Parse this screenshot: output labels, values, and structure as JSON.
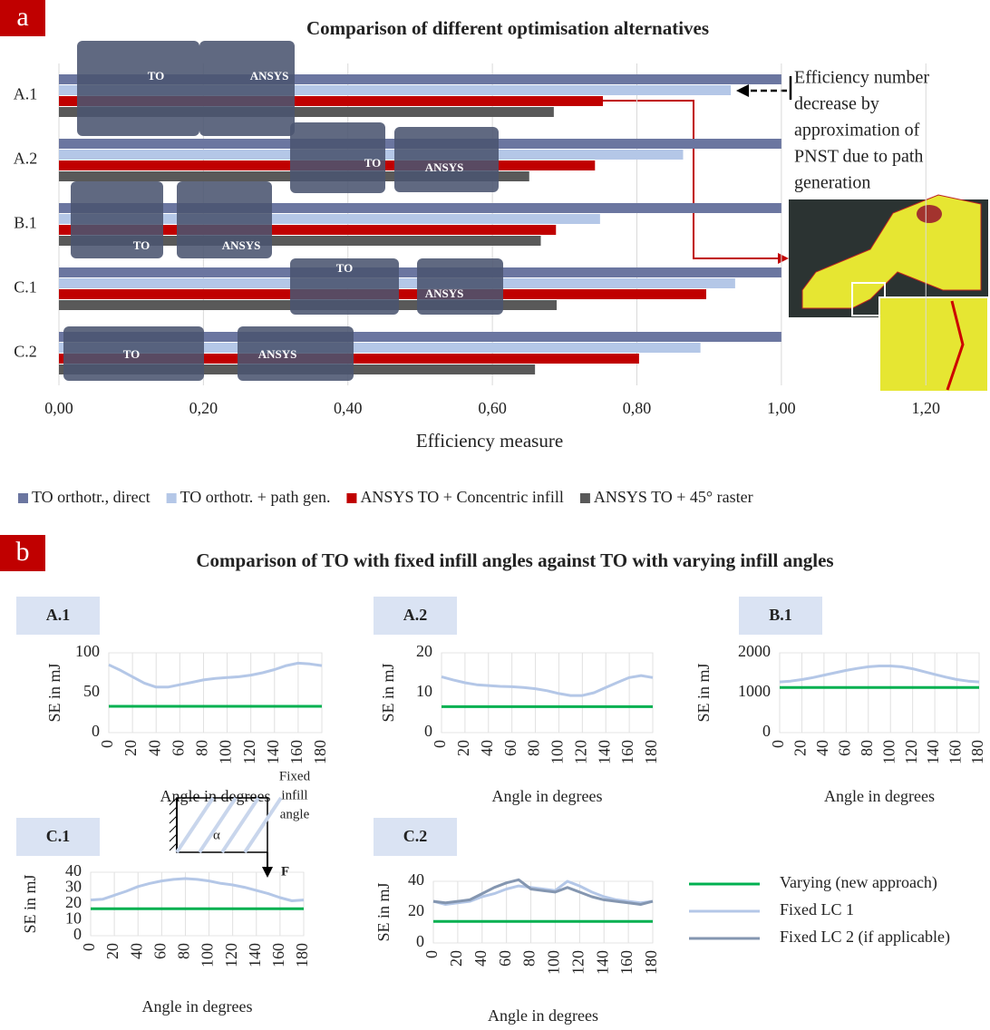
{
  "chart_data": [
    {
      "type": "bar",
      "orientation": "horizontal",
      "panel_label": "a",
      "title": "Comparison of different optimisation alternatives",
      "xlabel": "Efficiency measure",
      "categories": [
        "A.1",
        "A.2",
        "B.1",
        "C.1",
        "C.2"
      ],
      "series": [
        {
          "name": "TO orthotr., direct",
          "color": "#6b76a0",
          "values": [
            1.0,
            1.0,
            1.0,
            1.0,
            1.0
          ]
        },
        {
          "name": "TO orthotr. + path gen.",
          "color": "#b4c7e7",
          "values": [
            0.93,
            0.864,
            0.749,
            0.936,
            0.888
          ]
        },
        {
          "name": "ANSYS TO + Concentric infill",
          "color": "#c00000",
          "values": [
            0.753,
            0.742,
            0.688,
            0.896,
            0.803
          ]
        },
        {
          "name": "ANSYS TO + 45° raster",
          "color": "#595959",
          "values": [
            0.685,
            0.651,
            0.667,
            0.689,
            0.659
          ]
        }
      ],
      "xlim": [
        0,
        1.28
      ],
      "xticks": [
        {
          "value": 0,
          "label": "0,00"
        },
        {
          "value": 0.2,
          "label": "0,20"
        },
        {
          "value": 0.4,
          "label": "0,40"
        },
        {
          "value": 0.6,
          "label": "0,60"
        },
        {
          "value": 0.8,
          "label": "0,80"
        },
        {
          "value": 1.0,
          "label": "1,00"
        },
        {
          "value": 1.2,
          "label": "1,20"
        }
      ],
      "grid": true,
      "legend_position": "bottom",
      "annotation": [
        "Efficiency number",
        "decrease by",
        "approximation of",
        "PNST due to path",
        "generation"
      ],
      "image_labels": [
        [
          "TO",
          "ANSYS"
        ],
        [
          "TO",
          "ANSYS"
        ],
        [
          "TO",
          "ANSYS"
        ],
        [
          "TO",
          "ANSYS"
        ],
        [
          "TO",
          "ANSYS"
        ]
      ]
    },
    {
      "type": "line",
      "title": "A.1",
      "xlabel": "Angle in degrees",
      "ylabel": "SE in mJ",
      "x": [
        0,
        10,
        20,
        30,
        40,
        50,
        60,
        70,
        80,
        90,
        100,
        110,
        120,
        130,
        140,
        150,
        160,
        170,
        180
      ],
      "xlim": [
        0,
        180
      ],
      "xticks": [
        0,
        20,
        40,
        60,
        80,
        100,
        120,
        140,
        160,
        180
      ],
      "ylim": [
        0,
        100
      ],
      "yticks": [
        0,
        50,
        100
      ],
      "grid": true,
      "series": [
        {
          "color": "#00b050",
          "values": [
            33,
            33,
            33,
            33,
            33,
            33,
            33,
            33,
            33,
            33,
            33,
            33,
            33,
            33,
            33,
            33,
            33,
            33,
            33
          ]
        },
        {
          "color": "#b4c7e7",
          "values": [
            85,
            78,
            70,
            62,
            57,
            57,
            60,
            63,
            66,
            68,
            69,
            70,
            72,
            75,
            79,
            84,
            87,
            86,
            84
          ]
        }
      ]
    },
    {
      "type": "line",
      "title": "A.2",
      "xlabel": "Angle in degrees",
      "ylabel": "SE in mJ",
      "x": [
        0,
        10,
        20,
        30,
        40,
        50,
        60,
        70,
        80,
        90,
        100,
        110,
        120,
        130,
        140,
        150,
        160,
        170,
        180
      ],
      "xlim": [
        0,
        180
      ],
      "xticks": [
        0,
        20,
        40,
        60,
        80,
        100,
        120,
        140,
        160,
        180
      ],
      "ylim": [
        0,
        20
      ],
      "yticks": [
        0,
        10,
        20
      ],
      "grid": true,
      "series": [
        {
          "color": "#00b050",
          "values": [
            6.5,
            6.5,
            6.5,
            6.5,
            6.5,
            6.5,
            6.5,
            6.5,
            6.5,
            6.5,
            6.5,
            6.5,
            6.5,
            6.5,
            6.5,
            6.5,
            6.5,
            6.5,
            6.5
          ]
        },
        {
          "color": "#b4c7e7",
          "values": [
            14,
            13.2,
            12.5,
            12,
            11.8,
            11.6,
            11.5,
            11.3,
            11,
            10.5,
            9.8,
            9.3,
            9.3,
            10,
            11.3,
            12.6,
            13.8,
            14.3,
            13.8
          ]
        }
      ]
    },
    {
      "type": "line",
      "title": "B.1",
      "xlabel": "Angle in degrees",
      "ylabel": "SE in mJ",
      "x": [
        0,
        10,
        20,
        30,
        40,
        50,
        60,
        70,
        80,
        90,
        100,
        110,
        120,
        130,
        140,
        150,
        160,
        170,
        180
      ],
      "xlim": [
        0,
        180
      ],
      "xticks": [
        0,
        20,
        40,
        60,
        80,
        100,
        120,
        140,
        160,
        180
      ],
      "ylim": [
        0,
        2000
      ],
      "yticks": [
        0,
        1000,
        2000
      ],
      "grid": true,
      "series": [
        {
          "color": "#00b050",
          "values": [
            1130,
            1130,
            1130,
            1130,
            1130,
            1130,
            1130,
            1130,
            1130,
            1130,
            1130,
            1130,
            1130,
            1130,
            1130,
            1130,
            1130,
            1130,
            1130
          ]
        },
        {
          "color": "#b4c7e7",
          "values": [
            1270,
            1290,
            1330,
            1380,
            1440,
            1500,
            1560,
            1610,
            1650,
            1670,
            1670,
            1650,
            1600,
            1530,
            1460,
            1390,
            1330,
            1290,
            1270
          ]
        }
      ]
    },
    {
      "type": "line",
      "title": "C.1",
      "xlabel": "Angle in degrees",
      "ylabel": "SE in mJ",
      "x": [
        0,
        10,
        20,
        30,
        40,
        50,
        60,
        70,
        80,
        90,
        100,
        110,
        120,
        130,
        140,
        150,
        160,
        170,
        180
      ],
      "xlim": [
        0,
        180
      ],
      "xticks": [
        0,
        20,
        40,
        60,
        80,
        100,
        120,
        140,
        160,
        180
      ],
      "ylim": [
        0,
        40
      ],
      "yticks": [
        0,
        10,
        20,
        30,
        40
      ],
      "grid": true,
      "series": [
        {
          "color": "#00b050",
          "values": [
            17,
            17,
            17,
            17,
            17,
            17,
            17,
            17,
            17,
            17,
            17,
            17,
            17,
            17,
            17,
            17,
            17,
            17,
            17
          ]
        },
        {
          "color": "#b4c7e7",
          "values": [
            22.5,
            23,
            25.5,
            28,
            31,
            33,
            34.5,
            35.5,
            36,
            35.5,
            34.5,
            33,
            32,
            30.5,
            28.5,
            26.5,
            24,
            22,
            22.5
          ]
        }
      ],
      "inset": {
        "text": [
          "Fixed",
          "infill",
          "angle"
        ],
        "angle_symbol": "α",
        "force_label": "F"
      }
    },
    {
      "type": "line",
      "title": "C.2",
      "xlabel": "Angle in degrees",
      "ylabel": "SE in mJ",
      "x": [
        0,
        10,
        20,
        30,
        40,
        50,
        60,
        70,
        80,
        90,
        100,
        110,
        120,
        130,
        140,
        150,
        160,
        170,
        180
      ],
      "xlim": [
        0,
        180
      ],
      "xticks": [
        0,
        20,
        40,
        60,
        80,
        100,
        120,
        140,
        160,
        180
      ],
      "ylim": [
        0,
        40
      ],
      "yticks": [
        0,
        20,
        40
      ],
      "grid": true,
      "legend_position": "right",
      "series": [
        {
          "name": "Varying (new approach)",
          "color": "#00b050",
          "values": [
            14,
            14,
            14,
            14,
            14,
            14,
            14,
            14,
            14,
            14,
            14,
            14,
            14,
            14,
            14,
            14,
            14,
            14,
            14
          ]
        },
        {
          "name": "Fixed LC 1",
          "color": "#b4c7e7",
          "values": [
            27,
            25,
            26,
            27,
            30,
            32,
            35,
            37,
            36,
            35,
            34,
            40,
            37,
            33,
            30,
            28,
            27,
            26,
            27
          ]
        },
        {
          "name": "Fixed LC 2 (if applicable)",
          "color": "#8496b0",
          "values": [
            27,
            26,
            27,
            28,
            32,
            36,
            39,
            41,
            35,
            34,
            33,
            36,
            33,
            30,
            28,
            27,
            26,
            25,
            27
          ]
        }
      ]
    }
  ],
  "panel_b": {
    "label": "b",
    "title": "Comparison of TO with fixed infill angles against TO with varying infill angles"
  }
}
